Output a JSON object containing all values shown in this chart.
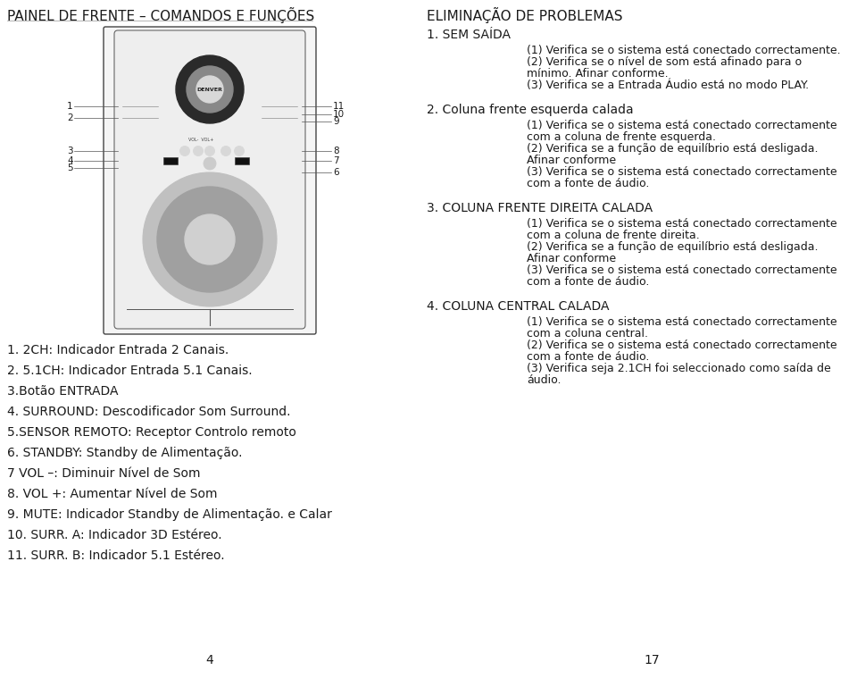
{
  "bg_color": "#ffffff",
  "left_title": "PAINEL DE FRENTE – COMANDOS E FUNÇÕES",
  "right_title": "ELIMINAÇÃO DE PROBLEMAS",
  "left_items": [
    "1. 2CH: Indicador Entrada 2 Canais.",
    "2. 5.1CH: Indicador Entrada 5.1 Canais.",
    "3.Botão ENTRADA",
    "4. SURROUND: Descodificador Som Surround.",
    "5.SENSOR REMOTO: Receptor Controlo remoto",
    "6. STANDBY: Standby de Alimentação.",
    "7 VOL –: Diminuir Nível de Som",
    "8. VOL +: Aumentar Nível de Som",
    "9. MUTE: Indicador Standby de Alimentação. e Calar",
    "10. SURR. A: Indicador 3D Estéreo.",
    "11. SURR. B: Indicador 5.1 Estéreo."
  ],
  "page_left": "4",
  "page_right": "17",
  "right_sections": [
    {
      "heading": "1. SEM SAÍDA",
      "heading_bold": false,
      "items": [
        "(1) Verifica se o sistema está conectado correctamente.",
        "(2) Verifica se o nível de som está afinado para o\nmínimo. Afinar conforme.",
        "(3) Verifica se a Entrada Áudio está no modo PLAY."
      ]
    },
    {
      "heading": "2. Coluna frente esquerda calada",
      "heading_bold": false,
      "items": [
        "(1) Verifica se o sistema está conectado correctamente\ncom a coluna de frente esquerda.",
        "(2) Verifica se a função de equilíbrio está desligada.\nAfinar conforme",
        "(3) Verifica se o sistema está conectado correctamente\ncom a fonte de áudio."
      ]
    },
    {
      "heading": "3. COLUNA FRENTE DIREITA CALADA",
      "heading_bold": false,
      "items": [
        "(1) Verifica se o sistema está conectado correctamente\ncom a coluna de frente direita.",
        "(2) Verifica se a função de equilíbrio está desligada.\nAfinar conforme",
        "(3) Verifica se o sistema está conectado correctamente\ncom a fonte de áudio."
      ]
    },
    {
      "heading": "4. COLUNA CENTRAL CALADA",
      "heading_bold": false,
      "items": [
        "(1) Verifica se o sistema está conectado correctamente\ncom a coluna central.",
        "(2) Verifica se o sistema está conectado correctamente\ncom a fonte de áudio.",
        "(3) Verifica seja 2.1CH foi seleccionado como saída de\náudio."
      ]
    }
  ],
  "font_size_title": 11,
  "font_size_heading": 10,
  "font_size_item": 9,
  "font_size_label": 10,
  "font_size_page": 10,
  "text_color": "#1a1a1a",
  "line_color": "#555555",
  "speaker_outline": "#444444",
  "speaker_bg": "#f5f5f5",
  "inner_bg": "#eeeeee"
}
